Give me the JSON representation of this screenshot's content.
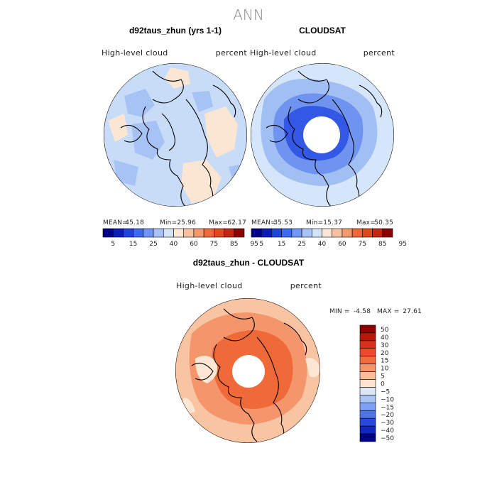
{
  "figure": {
    "title": "ANN",
    "panels": [
      {
        "id": "model",
        "heading": "d92taus_zhun (yrs 1-1)",
        "left_label": "High-level cloud",
        "right_label": "percent",
        "stats": {
          "mean_label": "MEAN=",
          "mean": "45.18",
          "min_label": "Min=",
          "min": "25.96",
          "max_label": "Max=",
          "max": "62.17"
        },
        "colorbar": {
          "ticks": [
            "5",
            "15",
            "25",
            "40",
            "60",
            "75",
            "85",
            "95"
          ],
          "colors": [
            "#00008b",
            "#0a1eb4",
            "#1f46dc",
            "#3c6af0",
            "#6f96f5",
            "#a6c2f7",
            "#d3e4f8",
            "#fde7d4",
            "#f7c1a0",
            "#f2986c",
            "#ec6a3b",
            "#e0481e",
            "#c0280f",
            "#8b0000"
          ]
        },
        "field": {
          "base": "#c8dcf7",
          "regions": [
            {
              "kind": "neutral",
              "color": "#fbe6d3"
            },
            {
              "kind": "low",
              "color": "#a7c3f5"
            }
          ]
        }
      },
      {
        "id": "obs",
        "heading": "CLOUDSAT",
        "left_label": "High-level cloud",
        "right_label": "percent",
        "stats": {
          "mean_label": "MEAN=",
          "mean": "35.53",
          "min_label": "Min=",
          "min": "15.37",
          "max_label": "Max=",
          "max": "50.35"
        },
        "colorbar": {
          "ticks": [
            "5",
            "15",
            "25",
            "40",
            "60",
            "75",
            "85",
            "95"
          ],
          "colors": [
            "#00008b",
            "#0a1eb4",
            "#1f46dc",
            "#3c6af0",
            "#6f96f5",
            "#a6c2f7",
            "#d3e4f8",
            "#fde7d4",
            "#f7c1a0",
            "#f2986c",
            "#ec6a3b",
            "#e0481e",
            "#c0280f",
            "#8b0000"
          ]
        },
        "field": {
          "base": "#d6e6fa",
          "regions": [
            {
              "kind": "mid",
              "color": "#a2bff4"
            },
            {
              "kind": "low",
              "color": "#6f94ef"
            },
            {
              "kind": "lowest",
              "color": "#3458e6"
            }
          ]
        }
      }
    ],
    "difference": {
      "heading": "d92taus_zhun - CLOUDSAT",
      "left_label": "High-level cloud",
      "right_label": "percent",
      "min_label": "MIN =",
      "min": "-4.58",
      "max_label": "MAX =",
      "max": "27.61",
      "colorbar": {
        "ticks": [
          "50",
          "40",
          "30",
          "20",
          "15",
          "10",
          "5",
          "0",
          "−5",
          "−10",
          "−15",
          "−20",
          "−30",
          "−40",
          "−50"
        ],
        "colors": [
          "#8b0000",
          "#b8180c",
          "#d8301a",
          "#ee4a26",
          "#f26c3f",
          "#f59468",
          "#f9bc98",
          "#fde3cf",
          "#dce8f8",
          "#a9c5f6",
          "#7ea1f2",
          "#4f73ea",
          "#2a49dc",
          "#1126c0",
          "#00008b"
        ]
      },
      "field": {
        "base": "#f9c4a2",
        "regions": [
          {
            "kind": "warm",
            "color": "#f4956b"
          },
          {
            "kind": "hot",
            "color": "#ef6a38"
          },
          {
            "kind": "cool",
            "color": "#fde7d4"
          }
        ]
      }
    }
  }
}
